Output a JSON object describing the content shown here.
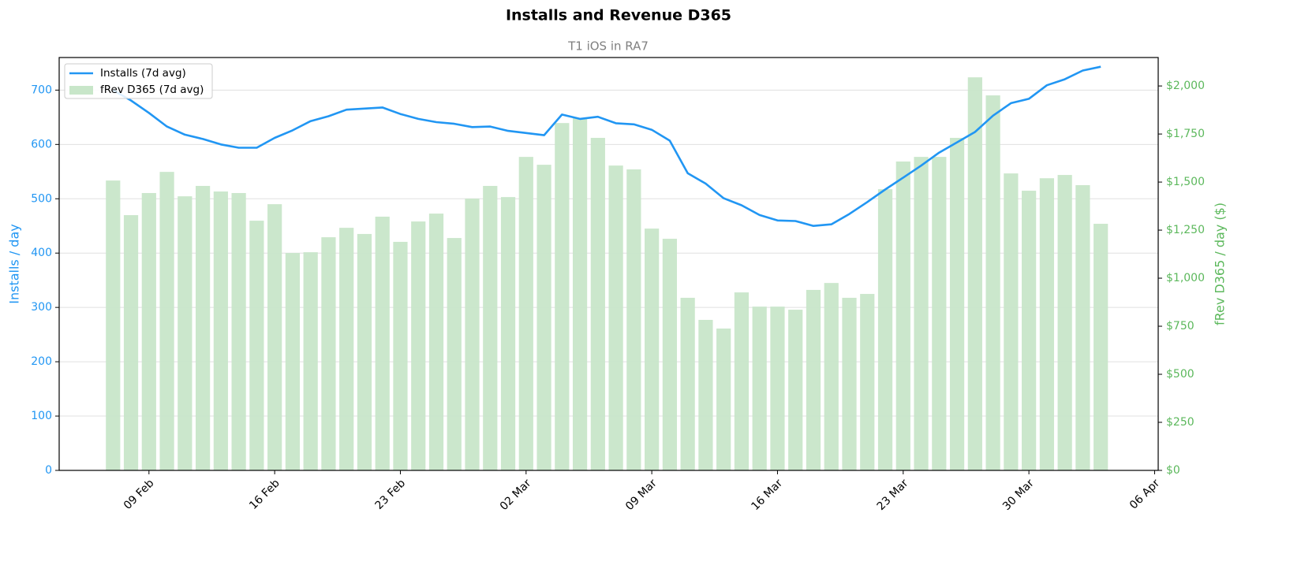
{
  "chart_data": {
    "type": "bar_line",
    "title": "Installs and Revenue D365",
    "subtitle": "T1 iOS in RA7",
    "ylabel": "Installs / day",
    "y2label": "fRev D365 / day ($)",
    "x": [
      "07 Feb",
      "08 Feb",
      "09 Feb",
      "10 Feb",
      "11 Feb",
      "12 Feb",
      "13 Feb",
      "14 Feb",
      "15 Feb",
      "16 Feb",
      "17 Feb",
      "18 Feb",
      "19 Feb",
      "20 Feb",
      "21 Feb",
      "22 Feb",
      "23 Feb",
      "24 Feb",
      "25 Feb",
      "26 Feb",
      "27 Feb",
      "28 Feb",
      "01 Mar",
      "02 Mar",
      "03 Mar",
      "04 Mar",
      "05 Mar",
      "06 Mar",
      "07 Mar",
      "08 Mar",
      "09 Mar",
      "10 Mar",
      "11 Mar",
      "12 Mar",
      "13 Mar",
      "14 Mar",
      "15 Mar",
      "16 Mar",
      "17 Mar",
      "18 Mar",
      "19 Mar",
      "20 Mar",
      "21 Mar",
      "22 Mar",
      "23 Mar",
      "24 Mar",
      "25 Mar",
      "26 Mar",
      "27 Mar",
      "28 Mar",
      "29 Mar",
      "30 Mar",
      "31 Mar",
      "01 Apr",
      "02 Apr",
      "03 Apr"
    ],
    "series": [
      {
        "name": "Installs (7d avg)",
        "type": "line",
        "color": "#2196f3",
        "axis": "y",
        "values": [
          700,
          681,
          658,
          633,
          618,
          610,
          600,
          594,
          594,
          612,
          626,
          643,
          652,
          664,
          666,
          668,
          656,
          647,
          641,
          638,
          632,
          633,
          625,
          621,
          617,
          655,
          647,
          651,
          639,
          637,
          627,
          607,
          547,
          528,
          501,
          488,
          470,
          460,
          459,
          450,
          453,
          472,
          494,
          517,
          539,
          561,
          585,
          604,
          623,
          653,
          676,
          684,
          709,
          720,
          736,
          743
        ]
      },
      {
        "name": "fRev D365 (7d avg)",
        "type": "bar",
        "color": "#c8e6c9",
        "axis": "y2",
        "values": [
          1508,
          1328,
          1443,
          1553,
          1426,
          1480,
          1451,
          1443,
          1299,
          1385,
          1131,
          1135,
          1213,
          1262,
          1230,
          1320,
          1189,
          1295,
          1336,
          1209,
          1414,
          1480,
          1422,
          1631,
          1590,
          1807,
          1832,
          1730,
          1586,
          1566,
          1258,
          1205,
          898,
          783,
          738,
          926,
          852,
          852,
          836,
          939,
          975,
          898,
          918,
          1463,
          1607,
          1631,
          1631,
          1730,
          2045,
          1951,
          1545,
          1455,
          1520,
          1537,
          1484,
          1283
        ]
      }
    ],
    "xlim": [
      "04 Feb",
      "06 Apr"
    ],
    "xticks": [
      "09 Feb",
      "16 Feb",
      "23 Feb",
      "02 Mar",
      "09 Mar",
      "16 Mar",
      "23 Mar",
      "30 Mar",
      "06 Apr"
    ],
    "ylim": [
      0,
      760
    ],
    "yticks": [
      0,
      100,
      200,
      300,
      400,
      500,
      600,
      700
    ],
    "y2lim": [
      0,
      2148
    ],
    "y2ticks": [
      {
        "value": 0,
        "label": "$0"
      },
      {
        "value": 250,
        "label": "$250"
      },
      {
        "value": 500,
        "label": "$500"
      },
      {
        "value": 750,
        "label": "$750"
      },
      {
        "value": 1000,
        "label": "$1,000"
      },
      {
        "value": 1250,
        "label": "$1,250"
      },
      {
        "value": 1500,
        "label": "$1,500"
      },
      {
        "value": 1750,
        "label": "$1,750"
      },
      {
        "value": 2000,
        "label": "$2,000"
      }
    ],
    "y_color": "#2196f3",
    "y2_color": "#5cb85c",
    "grid": true,
    "legend": "upper left"
  }
}
